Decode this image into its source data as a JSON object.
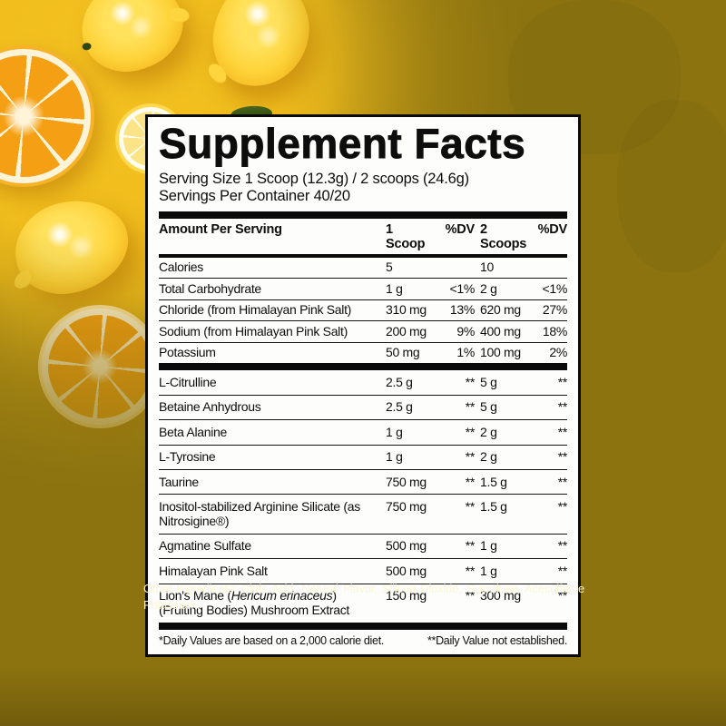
{
  "panel": {
    "title": "Supplement Facts",
    "serving_size": "Serving Size 1 Scoop (12.3g) / 2 scoops (24.6g)",
    "servings_per_container": "Servings Per Container 40/20",
    "columns": [
      "Amount Per Serving",
      "1 Scoop",
      "%DV",
      "2 Scoops",
      "%DV"
    ],
    "sections": [
      {
        "rows": [
          {
            "name": "Calories",
            "v1": "5",
            "dv1": "",
            "v2": "10",
            "dv2": ""
          },
          {
            "name": "Total Carbohydrate",
            "v1": "1 g",
            "dv1": "<1%",
            "v2": "2 g",
            "dv2": "<1%"
          },
          {
            "name": "Chloride (from Himalayan Pink Salt)",
            "v1": "310 mg",
            "dv1": "13%",
            "v2": "620 mg",
            "dv2": "27%"
          },
          {
            "name": "Sodium (from Himalayan Pink Salt)",
            "v1": "200 mg",
            "dv1": "9%",
            "v2": "400 mg",
            "dv2": "18%"
          },
          {
            "name": "Potassium",
            "v1": "50 mg",
            "dv1": "1%",
            "v2": "100 mg",
            "dv2": "2%"
          }
        ]
      },
      {
        "rows": [
          {
            "name": "L-Citrulline",
            "v1": "2.5 g",
            "dv1": "**",
            "v2": "5 g",
            "dv2": "**"
          },
          {
            "name": "Betaine Anhydrous",
            "v1": "2.5 g",
            "dv1": "**",
            "v2": "5 g",
            "dv2": "**"
          },
          {
            "name": "Beta Alanine",
            "v1": "1 g",
            "dv1": "**",
            "v2": "2 g",
            "dv2": "**"
          },
          {
            "name": "L-Tyrosine",
            "v1": "1 g",
            "dv1": "**",
            "v2": "2 g",
            "dv2": "**"
          },
          {
            "name": "Taurine",
            "v1": "750 mg",
            "dv1": "**",
            "v2": "1.5 g",
            "dv2": "**"
          },
          {
            "name": "Inositol-stabilized Arginine Silicate (as Nitrosigine®)",
            "v1": "750 mg",
            "dv1": "**",
            "v2": "1.5 g",
            "dv2": "**"
          },
          {
            "name": "Agmatine Sulfate",
            "v1": "500 mg",
            "dv1": "**",
            "v2": "1 g",
            "dv2": "**"
          },
          {
            "name": "Himalayan Pink Salt",
            "v1": "500 mg",
            "dv1": "**",
            "v2": "1 g",
            "dv2": "**"
          },
          {
            "name_parts": [
              "Lion's Mane (",
              {
                "i": "Hericum erinaceus"
              },
              ") (Fruiting Bodies) Mushroom Extract"
            ],
            "v1": "150 mg",
            "dv1": "**",
            "v2": "300 mg",
            "dv2": "**"
          }
        ]
      }
    ],
    "footnote_left": "*Daily Values are based on a 2,000 calorie diet.",
    "footnote_right": "**Daily Value not established."
  },
  "other_ingredients": "Other Ingredients: Citric Acid, Natural Flavor, Silicon Dioxide, Sucralose, Acesulfame Potassium.",
  "colors": {
    "background_olive": "#8c7310",
    "photo_yellow": "#f3c120",
    "lemon_yellow": "#fed33a",
    "orange_flesh": "#f5a014",
    "panel_background": "#fdfdfb",
    "panel_lines": "#0b0b0b",
    "other_ingredients_text": "#fdf6d6"
  }
}
